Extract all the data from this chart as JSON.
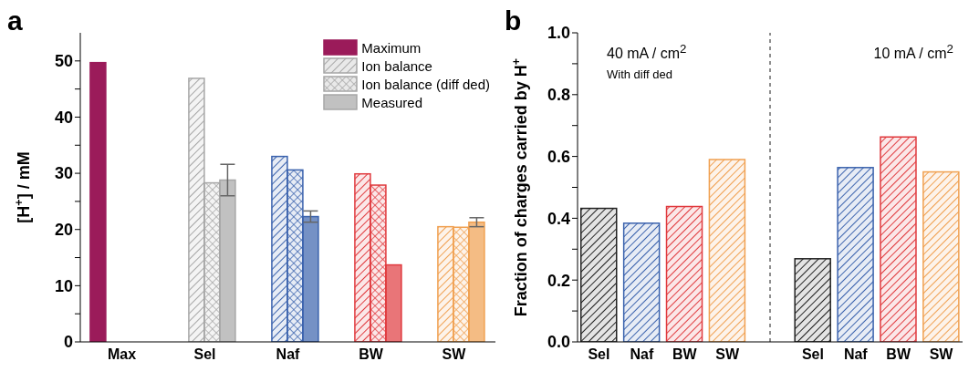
{
  "chart_data": [
    {
      "type": "bar",
      "title": "a",
      "categories": [
        "Max",
        "Sel",
        "Naf",
        "BW",
        "SW"
      ],
      "ylabel": "[H$^{+}$] / mM",
      "ylim": [
        0,
        55
      ],
      "yticks": [
        0,
        {
          "value": 5,
          "label": null
        },
        10,
        {
          "value": 15,
          "label": null
        },
        20,
        {
          "value": 25,
          "label": null
        },
        30,
        {
          "value": 35,
          "label": null
        },
        40,
        {
          "value": 45,
          "label": null
        },
        50
      ],
      "legend": "top right",
      "series": [
        {
          "name": "Maximum",
          "color": "#9b1b5a",
          "colors": [
            "#9b1b5a",
            null,
            null,
            null,
            null
          ],
          "values": [
            49.7,
            null,
            null,
            null,
            null
          ]
        },
        {
          "name": "Ion balance",
          "color": "#a6a6a6",
          "colors": [
            null,
            "#a6a6a6",
            "#3a62ad",
            "#e03a3e",
            "#f0a050"
          ],
          "values": [
            null,
            46.9,
            33.0,
            29.9,
            20.5
          ]
        },
        {
          "name": "Ion balance (diff ded)",
          "color": "#a6a6a6",
          "colors": [
            null,
            "#a6a6a6",
            "#3a62ad",
            "#e03a3e",
            "#f0a050"
          ],
          "values": [
            null,
            28.3,
            30.6,
            27.9,
            20.4
          ]
        },
        {
          "name": "Measured",
          "color": "#a6a6a6",
          "colors": [
            null,
            "#a6a6a6",
            "#3a62ad",
            "#e03a3e",
            "#f0a050"
          ],
          "values": [
            null,
            28.8,
            22.3,
            13.7,
            21.3
          ],
          "errors": [
            null,
            2.8,
            1.0,
            null,
            0.8
          ]
        }
      ]
    },
    {
      "type": "bar",
      "title": "b",
      "categories": [
        "Sel",
        "Naf",
        "BW",
        "SW",
        null,
        "Sel",
        "Naf",
        "BW",
        "SW"
      ],
      "ylabel": "Fraction of charges carried by H$^{+}$",
      "ylim": [
        0,
        1
      ],
      "yticks": [
        {
          "value": 0,
          "label": "0.0"
        },
        {
          "value": 0.1,
          "label": null
        },
        0.2,
        {
          "value": 0.3,
          "label": null
        },
        0.4,
        {
          "value": 0.5,
          "label": null
        },
        0.6,
        {
          "value": 0.7,
          "label": null
        },
        0.8,
        {
          "value": 0.9,
          "label": null
        },
        {
          "value": 1,
          "label": "1.0"
        }
      ],
      "annotations": [
        "40 mA / cm$^{2}$",
        "With diff ded",
        "10 mA / cm$^{2}$"
      ],
      "series": [
        {
          "colors": [
            "#222222",
            "#3a62ad",
            "#e03a3e",
            "#f0a050",
            null,
            "#222222",
            "#3a62ad",
            "#e03a3e",
            "#f0a050"
          ],
          "values": [
            0.432,
            0.384,
            0.438,
            0.59,
            null,
            0.269,
            0.564,
            0.663,
            0.55
          ]
        }
      ]
    }
  ]
}
